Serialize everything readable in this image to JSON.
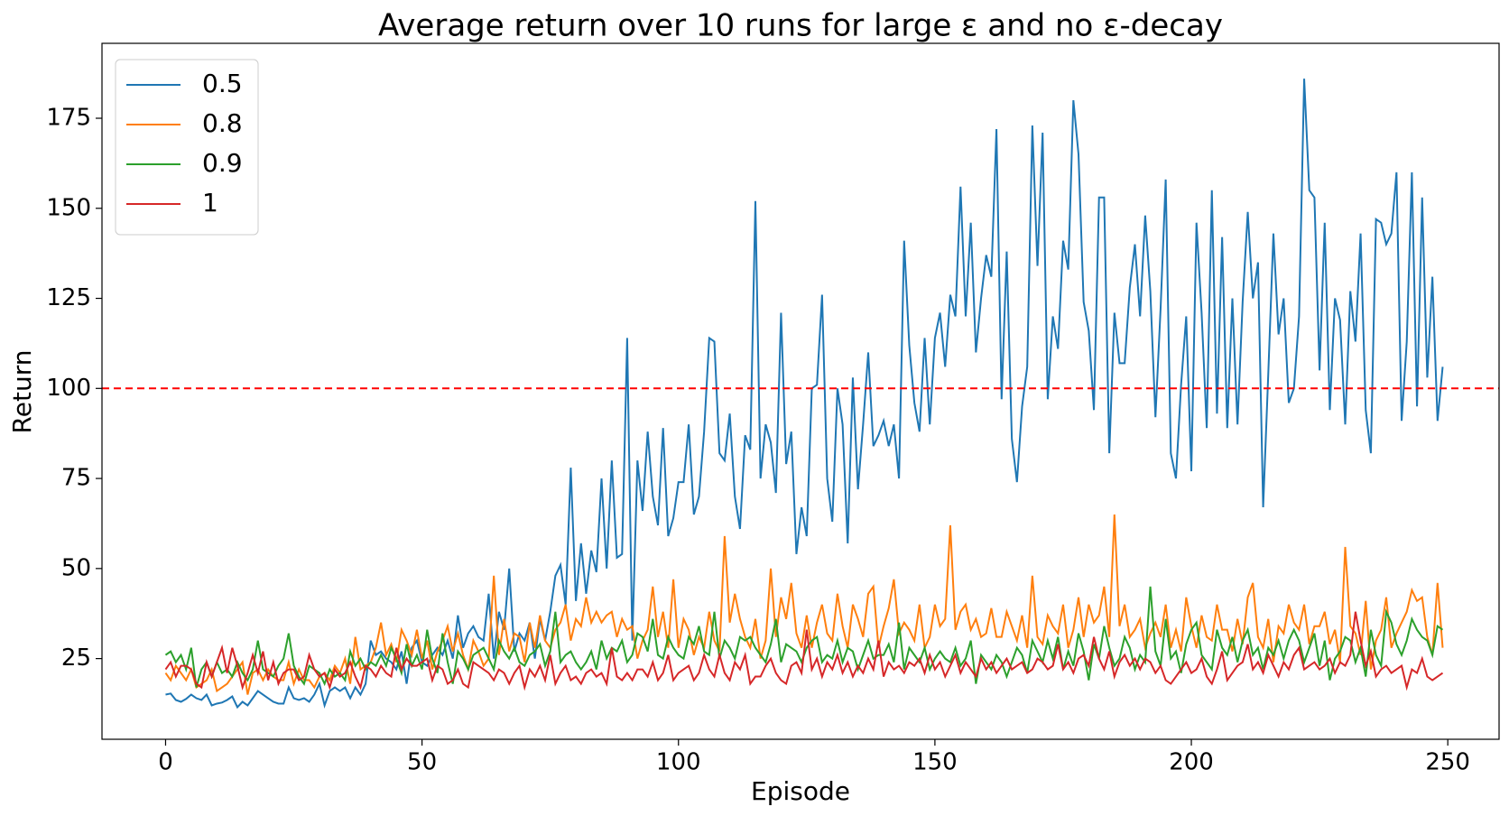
{
  "chart_data": {
    "type": "line",
    "title": "Average return over 10 runs for large ε and no ε-decay",
    "x_label": "Episode",
    "y_label": "Return",
    "xlim": [
      -12.4,
      260
    ],
    "ylim": [
      2.6,
      195.8
    ],
    "xticks": [
      0,
      50,
      100,
      150,
      200,
      250
    ],
    "yticks": [
      25,
      50,
      75,
      100,
      125,
      150,
      175
    ],
    "grid": false,
    "legend": "upper-left",
    "reference_line": {
      "value": 100,
      "color": "#ff0000",
      "style": "dashed"
    },
    "series": [
      {
        "name": "0.5",
        "color": "#1f77b4",
        "values": [
          15,
          15.3,
          13.5,
          13,
          13.8,
          15,
          14,
          13.5,
          15,
          12,
          12.5,
          12.8,
          13.5,
          14.5,
          11.5,
          13,
          12,
          14,
          16,
          15,
          14,
          13,
          12.5,
          12.5,
          17,
          14,
          13.5,
          14,
          13,
          15,
          18,
          12,
          16,
          17,
          16,
          17,
          14,
          17,
          15,
          18,
          30,
          26,
          27,
          25,
          24,
          22,
          27,
          18,
          28,
          30,
          24,
          23,
          26,
          28,
          26,
          30,
          25,
          37,
          28,
          32,
          34,
          31,
          30,
          43,
          25,
          38,
          33,
          50,
          27,
          32,
          30,
          35,
          25,
          36,
          30,
          38,
          48,
          51,
          40,
          78,
          41,
          57,
          43,
          55,
          49,
          75,
          50,
          80,
          53,
          54,
          114,
          30,
          80,
          66,
          88,
          70,
          62,
          89,
          59,
          64,
          74,
          74,
          90,
          65,
          70,
          88,
          114,
          113,
          82,
          80,
          93,
          70,
          61,
          87,
          83,
          152,
          75,
          90,
          85,
          71,
          121,
          79,
          88,
          54,
          67,
          59,
          100,
          101,
          126,
          75,
          63,
          100,
          90,
          57,
          103,
          72,
          90,
          110,
          84,
          87,
          91,
          84,
          90,
          75,
          141,
          112,
          96,
          88,
          114,
          90,
          114,
          121,
          106,
          126,
          120,
          156,
          120,
          146,
          110,
          125,
          137,
          131,
          172,
          97,
          138,
          86,
          74,
          95,
          106,
          173,
          134,
          171,
          97,
          120,
          111,
          141,
          133,
          180,
          165,
          124,
          116,
          94,
          153,
          153,
          82,
          121,
          107,
          107,
          128,
          140,
          120,
          148,
          127,
          92,
          122,
          158,
          82,
          75,
          101,
          120,
          77,
          146,
          121,
          89,
          155,
          93,
          142,
          89,
          125,
          90,
          124,
          149,
          125,
          135,
          67,
          104,
          143,
          115,
          125,
          96,
          100,
          120,
          186,
          155,
          153,
          105,
          146,
          94,
          125,
          119,
          90,
          127,
          113,
          143,
          94,
          82,
          147,
          146,
          140,
          143,
          160,
          91,
          113,
          160,
          95,
          153,
          103,
          131,
          91,
          106
        ]
      },
      {
        "name": "0.8",
        "color": "#ff7f0e",
        "values": [
          21,
          19,
          23,
          21,
          19,
          22,
          17,
          18,
          19,
          22,
          16,
          17,
          18,
          20,
          22,
          24,
          15,
          21,
          22,
          19,
          22,
          20,
          19,
          19,
          24,
          18,
          22,
          19,
          19,
          17,
          20,
          21,
          19,
          23,
          21,
          25,
          18,
          31,
          22,
          23,
          24,
          28,
          35,
          26,
          29,
          24,
          33,
          30,
          26,
          33,
          25,
          30,
          22,
          27,
          30,
          34,
          27,
          32,
          26,
          22,
          30,
          27,
          23,
          25,
          48,
          26,
          36,
          27,
          32,
          31,
          24,
          35,
          28,
          37,
          30,
          28,
          33,
          35,
          40,
          30,
          36,
          34,
          42,
          35,
          38,
          35,
          37,
          38,
          31,
          36,
          33,
          34,
          25,
          30,
          33,
          45,
          31,
          38,
          28,
          47,
          28,
          36,
          33,
          26,
          31,
          28,
          38,
          30,
          27,
          59,
          35,
          43,
          36,
          31,
          28,
          36,
          25,
          30,
          50,
          31,
          42,
          36,
          46,
          32,
          28,
          37,
          28,
          35,
          40,
          32,
          30,
          43,
          34,
          28,
          40,
          36,
          31,
          43,
          45,
          28,
          34,
          39,
          47,
          32,
          35,
          33,
          30,
          40,
          28,
          31,
          40,
          34,
          36,
          62,
          33,
          38,
          40,
          33,
          36,
          31,
          32,
          39,
          31,
          31,
          38,
          34,
          30,
          37,
          28,
          48,
          31,
          29,
          37,
          34,
          32,
          40,
          28,
          33,
          42,
          31,
          40,
          35,
          37,
          45,
          31,
          65,
          34,
          40,
          31,
          33,
          36,
          28,
          32,
          35,
          31,
          40,
          28,
          33,
          27,
          42,
          34,
          28,
          37,
          31,
          30,
          40,
          33,
          33,
          27,
          36,
          29,
          42,
          46,
          31,
          28,
          36,
          24,
          34,
          32,
          40,
          35,
          33,
          40,
          29,
          34,
          34,
          38,
          29,
          33,
          24,
          56,
          34,
          32,
          26,
          41,
          22,
          30,
          33,
          42,
          28,
          32,
          35,
          38,
          44,
          41,
          42,
          31,
          26,
          46,
          28
        ]
      },
      {
        "name": "0.9",
        "color": "#2ca02c",
        "values": [
          26,
          27,
          24,
          26,
          22,
          28,
          17,
          22,
          24,
          20,
          24,
          21,
          22,
          20,
          24,
          21,
          19,
          22,
          30,
          22,
          21,
          20,
          23,
          25,
          32,
          23,
          20,
          18,
          23,
          22,
          21,
          18,
          22,
          20,
          21,
          19,
          27,
          23,
          25,
          22,
          24,
          23,
          26,
          23,
          28,
          25,
          21,
          29,
          23,
          26,
          22,
          33,
          25,
          21,
          32,
          24,
          18,
          27,
          25,
          22,
          26,
          27,
          28,
          25,
          22,
          30,
          27,
          25,
          28,
          24,
          23,
          26,
          27,
          29,
          23,
          27,
          38,
          24,
          26,
          27,
          24,
          22,
          24,
          27,
          22,
          30,
          25,
          28,
          27,
          30,
          24,
          26,
          32,
          31,
          27,
          36,
          26,
          25,
          31,
          28,
          26,
          25,
          31,
          29,
          34,
          27,
          26,
          38,
          25,
          30,
          28,
          25,
          31,
          30,
          31,
          28,
          26,
          24,
          29,
          36,
          24,
          29,
          28,
          27,
          24,
          28,
          30,
          31,
          24,
          26,
          25,
          30,
          24,
          28,
          27,
          22,
          26,
          30,
          25,
          26,
          26,
          29,
          24,
          35,
          22,
          28,
          26,
          24,
          28,
          22,
          25,
          27,
          25,
          24,
          28,
          23,
          25,
          30,
          18,
          26,
          24,
          22,
          26,
          24,
          20,
          24,
          28,
          26,
          21,
          30,
          27,
          24,
          30,
          25,
          31,
          22,
          27,
          23,
          32,
          27,
          19,
          29,
          25,
          34,
          28,
          23,
          25,
          31,
          28,
          22,
          26,
          24,
          45,
          27,
          23,
          36,
          25,
          27,
          21,
          29,
          33,
          35,
          26,
          24,
          22,
          33,
          28,
          26,
          31,
          24,
          30,
          33,
          26,
          28,
          22,
          28,
          26,
          30,
          25,
          30,
          33,
          30,
          24,
          28,
          32,
          23,
          30,
          19,
          25,
          27,
          31,
          30,
          24,
          28,
          20,
          33,
          26,
          23,
          38,
          35,
          29,
          26,
          30,
          36,
          33,
          31,
          30,
          26,
          34,
          33
        ]
      },
      {
        "name": "1",
        "color": "#d62728",
        "values": [
          22,
          24,
          20,
          23,
          23,
          22,
          18,
          17,
          24,
          20,
          24,
          28,
          21,
          28,
          23,
          17,
          21,
          26,
          21,
          27,
          19,
          24,
          18,
          21,
          22,
          22,
          19,
          20,
          26,
          22,
          20,
          21,
          17,
          22,
          20,
          21,
          24,
          20,
          17,
          23,
          22,
          20,
          23,
          21,
          20,
          28,
          22,
          25,
          23,
          23,
          24,
          25,
          19,
          23,
          22,
          18,
          19,
          22,
          18,
          17,
          24,
          23,
          22,
          21,
          19,
          22,
          21,
          18,
          21,
          23,
          17,
          22,
          20,
          23,
          19,
          26,
          18,
          21,
          23,
          19,
          20,
          18,
          21,
          22,
          20,
          21,
          18,
          28,
          20,
          19,
          21,
          19,
          22,
          22,
          20,
          24,
          19,
          21,
          26,
          19,
          21,
          22,
          23,
          19,
          21,
          26,
          22,
          20,
          26,
          21,
          19,
          24,
          22,
          26,
          18,
          20,
          20,
          23,
          25,
          21,
          19,
          18,
          23,
          24,
          21,
          33,
          22,
          25,
          20,
          24,
          22,
          26,
          21,
          24,
          20,
          23,
          21,
          25,
          22,
          30,
          20,
          24,
          22,
          23,
          21,
          24,
          23,
          25,
          21,
          26,
          22,
          24,
          20,
          23,
          26,
          21,
          24,
          22,
          20,
          25,
          22,
          24,
          21,
          23,
          25,
          22,
          23,
          24,
          21,
          22,
          25,
          24,
          22,
          23,
          29,
          22,
          24,
          21,
          25,
          26,
          23,
          31,
          25,
          22,
          27,
          20,
          24,
          26,
          23,
          25,
          22,
          25,
          24,
          21,
          23,
          19,
          18,
          20,
          22,
          24,
          21,
          22,
          25,
          20,
          18,
          22,
          27,
          19,
          21,
          23,
          24,
          29,
          22,
          24,
          21,
          26,
          23,
          20,
          24,
          22,
          26,
          28,
          22,
          23,
          24,
          22,
          23,
          25,
          21,
          24,
          23,
          26,
          38,
          30,
          23,
          27,
          20,
          22,
          23,
          21,
          22,
          23,
          17,
          22,
          21,
          25,
          20,
          19,
          20,
          21
        ]
      }
    ]
  }
}
